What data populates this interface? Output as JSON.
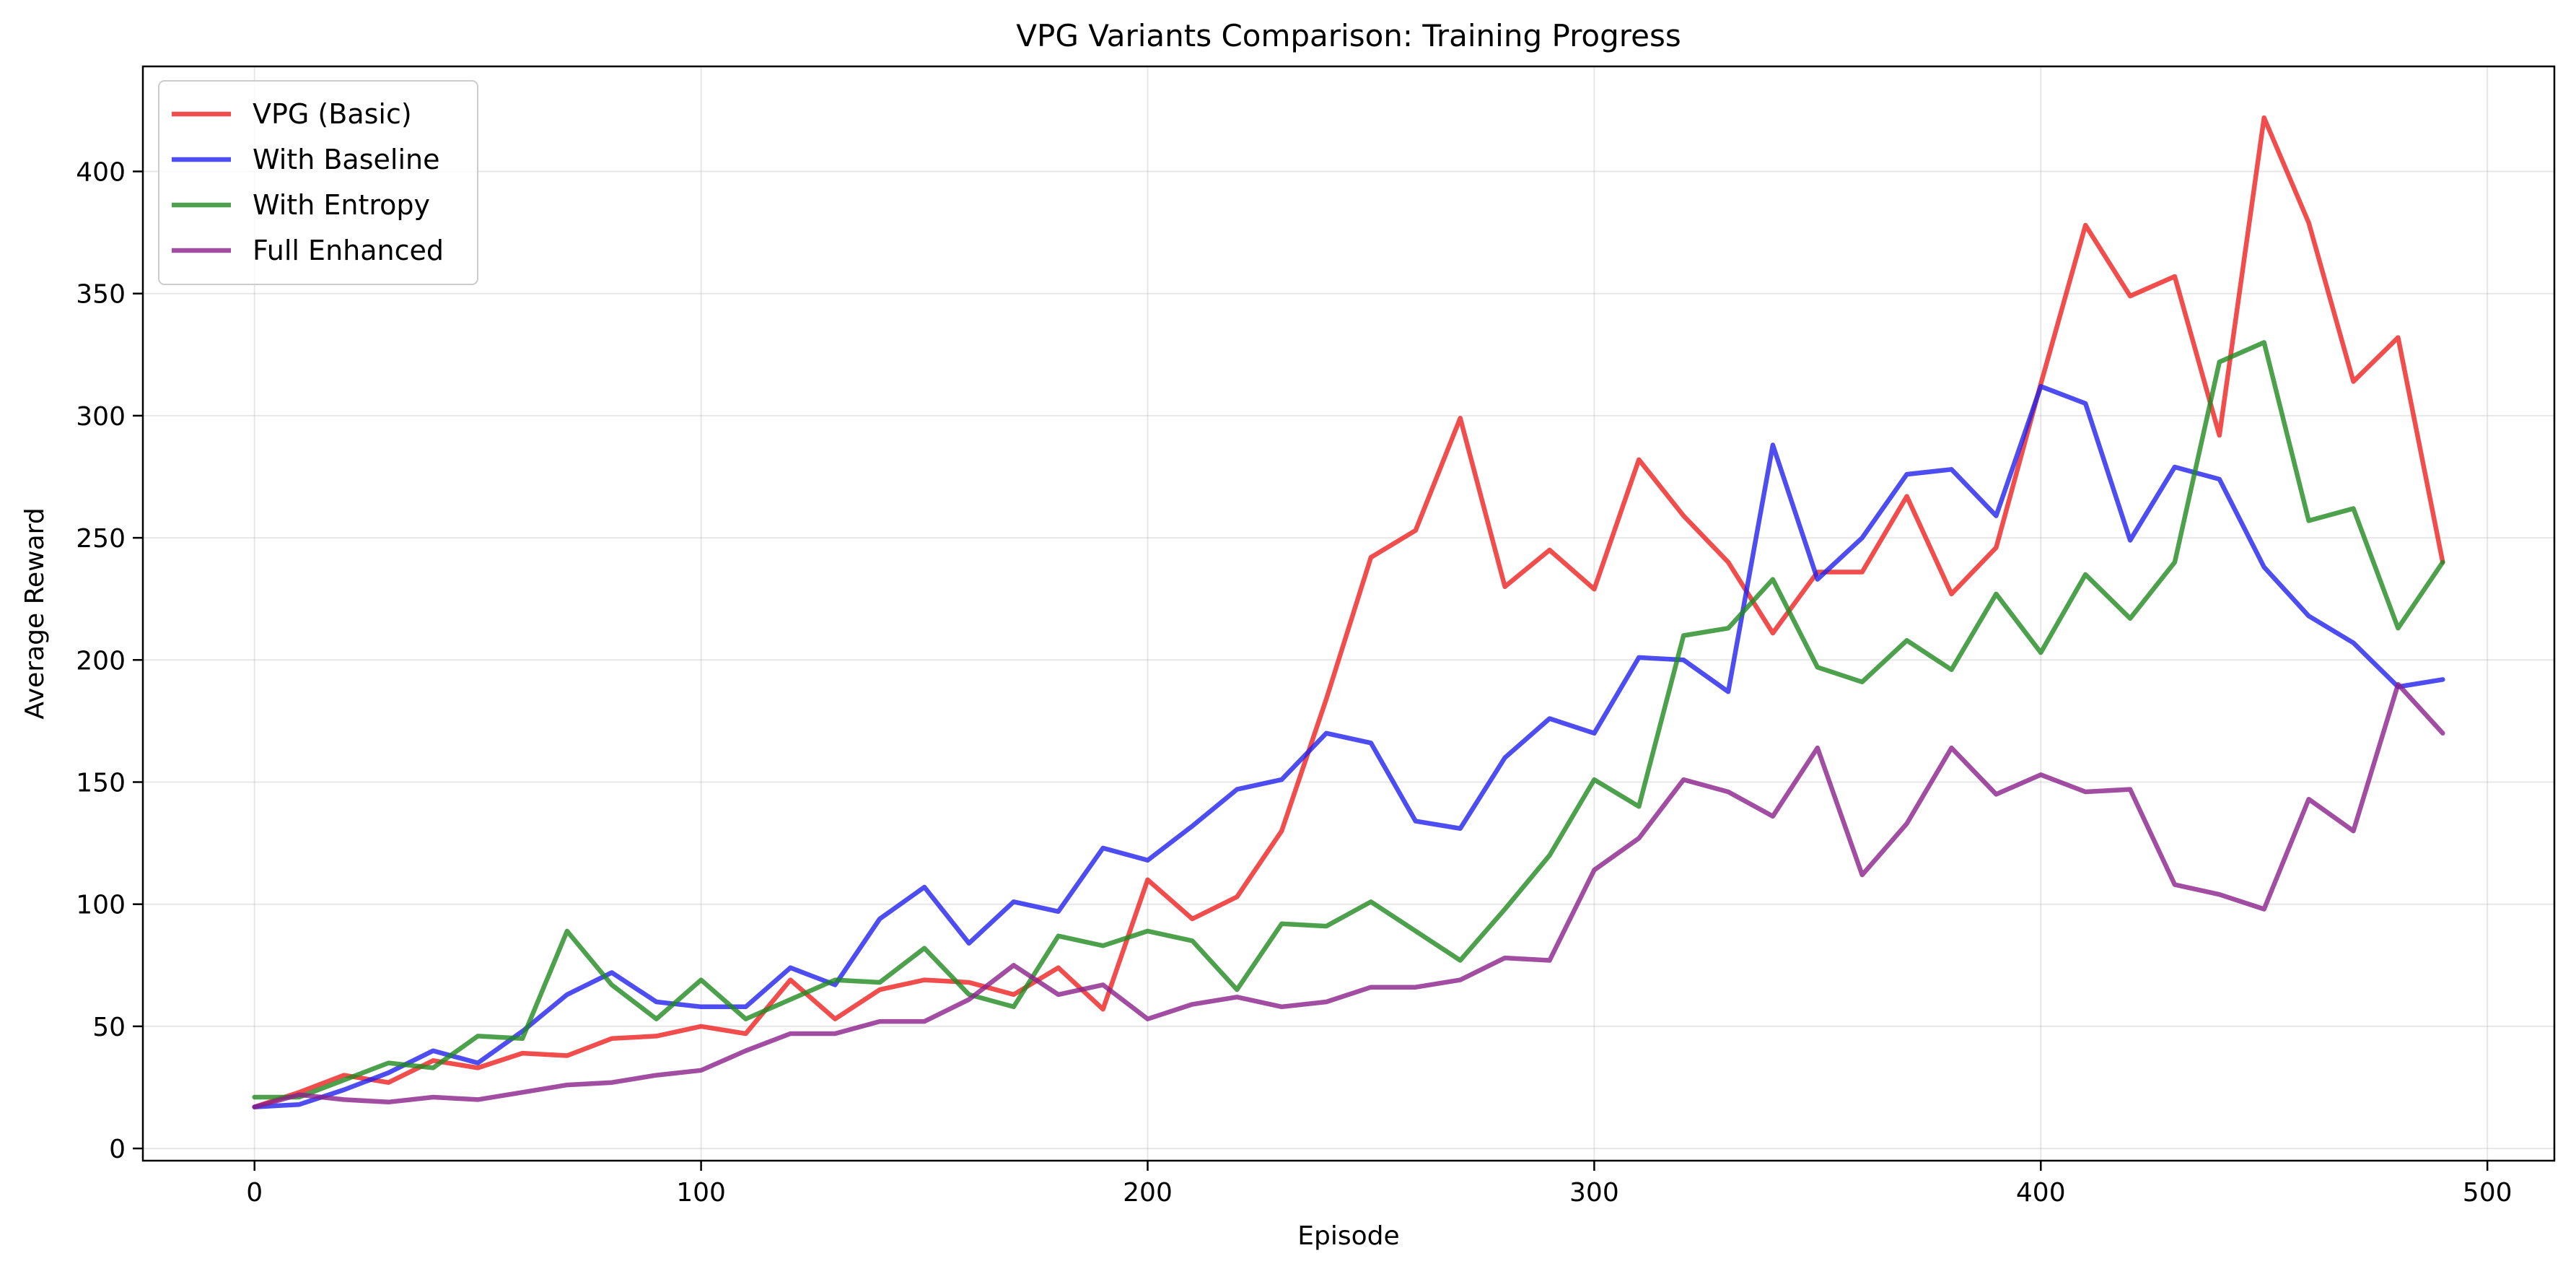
{
  "chart_data": {
    "type": "line",
    "title": "VPG Variants Comparison: Training Progress",
    "xlabel": "Episode",
    "ylabel": "Average Reward",
    "xlim": [
      -25,
      515
    ],
    "ylim": [
      -5,
      443
    ],
    "xticks": [
      0,
      100,
      200,
      300,
      400,
      500
    ],
    "xtick_labels": [
      "0",
      "100",
      "200",
      "300",
      "400",
      "500"
    ],
    "yticks": [
      0,
      50,
      100,
      150,
      200,
      250,
      300,
      350,
      400
    ],
    "ytick_labels": [
      "0",
      "50",
      "100",
      "150",
      "200",
      "250",
      "300",
      "350",
      "400"
    ],
    "grid": true,
    "legend_position": "top-left",
    "x": [
      0,
      10,
      20,
      30,
      40,
      50,
      60,
      70,
      80,
      90,
      100,
      110,
      120,
      130,
      140,
      150,
      160,
      170,
      180,
      190,
      200,
      210,
      220,
      230,
      240,
      250,
      260,
      270,
      280,
      290,
      300,
      310,
      320,
      330,
      340,
      350,
      360,
      370,
      380,
      390,
      400,
      410,
      420,
      430,
      440,
      450,
      460,
      470,
      480,
      490
    ],
    "series": [
      {
        "name": "VPG (Basic)",
        "color": "#ee2020",
        "values": [
          17,
          23,
          30,
          27,
          36,
          33,
          39,
          38,
          45,
          46,
          50,
          47,
          69,
          53,
          65,
          69,
          68,
          63,
          74,
          57,
          110,
          94,
          103,
          130,
          184,
          242,
          253,
          299,
          230,
          245,
          229,
          282,
          259,
          240,
          211,
          236,
          236,
          267,
          227,
          246,
          313,
          378,
          349,
          357,
          292,
          422,
          379,
          314,
          332,
          240
        ]
      },
      {
        "name": "With Baseline",
        "color": "#2020ee",
        "values": [
          17,
          18,
          24,
          31,
          40,
          35,
          48,
          63,
          72,
          60,
          58,
          58,
          74,
          67,
          94,
          107,
          84,
          101,
          97,
          123,
          118,
          132,
          147,
          151,
          170,
          166,
          134,
          131,
          160,
          176,
          170,
          201,
          200,
          187,
          288,
          233,
          250,
          276,
          278,
          259,
          312,
          305,
          249,
          279,
          274,
          238,
          218,
          207,
          189,
          192
        ]
      },
      {
        "name": "With Entropy",
        "color": "#208a20",
        "values": [
          21,
          21,
          28,
          35,
          33,
          46,
          45,
          89,
          67,
          53,
          69,
          53,
          61,
          69,
          68,
          82,
          63,
          58,
          87,
          83,
          89,
          85,
          65,
          92,
          91,
          101,
          89,
          77,
          98,
          120,
          151,
          140,
          210,
          213,
          233,
          197,
          191,
          208,
          196,
          227,
          203,
          235,
          217,
          240,
          322,
          330,
          257,
          262,
          213,
          240
        ]
      },
      {
        "name": "Full Enhanced",
        "color": "#8a208a",
        "values": [
          17,
          22,
          20,
          19,
          21,
          20,
          23,
          26,
          27,
          30,
          32,
          40,
          47,
          47,
          52,
          52,
          61,
          75,
          63,
          67,
          53,
          59,
          62,
          58,
          60,
          66,
          66,
          69,
          78,
          77,
          114,
          127,
          151,
          146,
          136,
          164,
          112,
          133,
          164,
          145,
          153,
          146,
          147,
          108,
          104,
          98,
          143,
          130,
          190,
          170
        ]
      }
    ]
  }
}
